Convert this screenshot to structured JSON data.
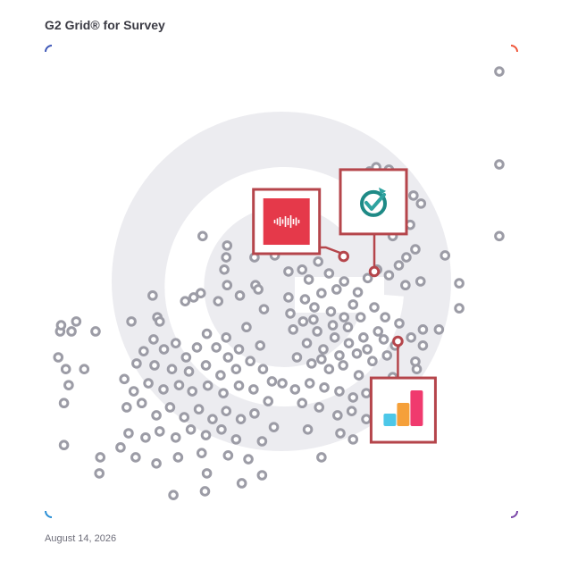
{
  "header": {
    "title": "G2 Grid® for Survey"
  },
  "footer": {
    "date": "August 14, 2026"
  },
  "colors": {
    "marker_fill": "#ffffff",
    "marker_stroke": "#9c9ca6",
    "highlight": "#b5454b",
    "watermark": "#e9e9ed"
  },
  "chart_data": {
    "type": "scatter",
    "title": "G2 Grid® for Survey",
    "xlabel": "",
    "ylabel": "",
    "xlim": [
      0,
      100
    ],
    "ylim": [
      0,
      100
    ],
    "quadrant_split": [
      50,
      50
    ],
    "grid": true,
    "logo_watermark": "g2-logo",
    "points": [
      {
        "x": 96.2,
        "y": 94.5
      },
      {
        "x": 96.2,
        "y": 74.8
      },
      {
        "x": 96.2,
        "y": 59.6
      },
      {
        "x": 84.7,
        "y": 55.5
      },
      {
        "x": 87.7,
        "y": 49.6
      },
      {
        "x": 87.7,
        "y": 44.3
      },
      {
        "x": 83.4,
        "y": 39.8
      },
      {
        "x": 80.0,
        "y": 39.8
      },
      {
        "x": 77.5,
        "y": 38.1
      },
      {
        "x": 80.0,
        "y": 36.4
      },
      {
        "x": 78.4,
        "y": 33.0
      },
      {
        "x": 72.8,
        "y": 73.7
      },
      {
        "x": 70.1,
        "y": 74.2
      },
      {
        "x": 68.7,
        "y": 73.3
      },
      {
        "x": 71.5,
        "y": 72.4
      },
      {
        "x": 73.6,
        "y": 68.9
      },
      {
        "x": 78.0,
        "y": 68.2
      },
      {
        "x": 79.6,
        "y": 66.5
      },
      {
        "x": 75.0,
        "y": 63.2
      },
      {
        "x": 77.3,
        "y": 62.0
      },
      {
        "x": 73.6,
        "y": 59.6
      },
      {
        "x": 78.4,
        "y": 56.8
      },
      {
        "x": 76.5,
        "y": 55.1
      },
      {
        "x": 74.9,
        "y": 53.4
      },
      {
        "x": 79.5,
        "y": 50.0
      },
      {
        "x": 76.3,
        "y": 49.2
      },
      {
        "x": 72.8,
        "y": 51.3
      },
      {
        "x": 70.3,
        "y": 52.5
      },
      {
        "x": 68.3,
        "y": 50.7
      },
      {
        "x": 66.2,
        "y": 47.7
      },
      {
        "x": 65.2,
        "y": 45.1
      },
      {
        "x": 63.3,
        "y": 50.0
      },
      {
        "x": 61.7,
        "y": 48.3
      },
      {
        "x": 60.1,
        "y": 51.7
      },
      {
        "x": 58.5,
        "y": 47.5
      },
      {
        "x": 57.8,
        "y": 54.2
      },
      {
        "x": 55.8,
        "y": 50.4
      },
      {
        "x": 55.0,
        "y": 46.2
      },
      {
        "x": 54.4,
        "y": 52.5
      },
      {
        "x": 51.5,
        "y": 46.6
      },
      {
        "x": 52.5,
        "y": 39.8
      },
      {
        "x": 56.8,
        "y": 41.9
      },
      {
        "x": 60.5,
        "y": 43.6
      },
      {
        "x": 63.3,
        "y": 42.4
      },
      {
        "x": 66.8,
        "y": 42.4
      },
      {
        "x": 69.7,
        "y": 44.5
      },
      {
        "x": 72.0,
        "y": 42.4
      },
      {
        "x": 75.0,
        "y": 41.1
      },
      {
        "x": 70.5,
        "y": 39.4
      },
      {
        "x": 67.4,
        "y": 38.1
      },
      {
        "x": 64.3,
        "y": 36.9
      },
      {
        "x": 61.3,
        "y": 38.1
      },
      {
        "x": 58.9,
        "y": 35.6
      },
      {
        "x": 55.4,
        "y": 36.9
      },
      {
        "x": 53.3,
        "y": 33.9
      },
      {
        "x": 56.4,
        "y": 32.6
      },
      {
        "x": 60.1,
        "y": 31.4
      },
      {
        "x": 63.1,
        "y": 32.2
      },
      {
        "x": 66.4,
        "y": 30.1
      },
      {
        "x": 69.3,
        "y": 33.1
      },
      {
        "x": 72.4,
        "y": 34.3
      },
      {
        "x": 73.6,
        "y": 29.7
      },
      {
        "x": 70.9,
        "y": 27.1
      },
      {
        "x": 68.0,
        "y": 26.3
      },
      {
        "x": 65.2,
        "y": 25.4
      },
      {
        "x": 62.3,
        "y": 26.7
      },
      {
        "x": 59.1,
        "y": 27.5
      },
      {
        "x": 56.0,
        "y": 28.4
      },
      {
        "x": 52.9,
        "y": 27.1
      },
      {
        "x": 50.2,
        "y": 28.4
      },
      {
        "x": 54.4,
        "y": 24.2
      },
      {
        "x": 58.0,
        "y": 23.3
      },
      {
        "x": 61.9,
        "y": 21.6
      },
      {
        "x": 64.9,
        "y": 22.5
      },
      {
        "x": 68.0,
        "y": 20.8
      },
      {
        "x": 71.3,
        "y": 23.7
      },
      {
        "x": 74.5,
        "y": 25.4
      },
      {
        "x": 76.6,
        "y": 27.9
      },
      {
        "x": 65.2,
        "y": 16.5
      },
      {
        "x": 58.5,
        "y": 12.7
      },
      {
        "x": 62.5,
        "y": 17.8
      },
      {
        "x": 55.6,
        "y": 18.6
      },
      {
        "x": 78.7,
        "y": 31.4
      },
      {
        "x": 66.0,
        "y": 34.7
      },
      {
        "x": 62.3,
        "y": 34.3
      },
      {
        "x": 58.5,
        "y": 33.5
      },
      {
        "x": 71.7,
        "y": 37.7
      },
      {
        "x": 74.1,
        "y": 36.4
      },
      {
        "x": 68.2,
        "y": 35.6
      },
      {
        "x": 64.1,
        "y": 40.3
      },
      {
        "x": 60.9,
        "y": 40.7
      },
      {
        "x": 57.6,
        "y": 39.4
      },
      {
        "x": 54.6,
        "y": 41.5
      },
      {
        "x": 51.9,
        "y": 43.2
      },
      {
        "x": 57.0,
        "y": 44.5
      },
      {
        "x": 44.5,
        "y": 49.2
      },
      {
        "x": 41.2,
        "y": 47.0
      },
      {
        "x": 38.5,
        "y": 49.2
      },
      {
        "x": 36.6,
        "y": 45.8
      },
      {
        "x": 32.9,
        "y": 47.5
      },
      {
        "x": 29.6,
        "y": 45.8
      },
      {
        "x": 23.7,
        "y": 42.4
      },
      {
        "x": 22.7,
        "y": 47.0
      },
      {
        "x": 18.2,
        "y": 41.5
      },
      {
        "x": 24.2,
        "y": 41.5
      },
      {
        "x": 46.3,
        "y": 44.1
      },
      {
        "x": 42.6,
        "y": 40.3
      },
      {
        "x": 45.5,
        "y": 36.4
      },
      {
        "x": 41.0,
        "y": 35.6
      },
      {
        "x": 38.3,
        "y": 38.1
      },
      {
        "x": 38.7,
        "y": 33.9
      },
      {
        "x": 36.2,
        "y": 36.0
      },
      {
        "x": 34.2,
        "y": 38.9
      },
      {
        "x": 32.1,
        "y": 36.0
      },
      {
        "x": 29.8,
        "y": 33.9
      },
      {
        "x": 27.6,
        "y": 36.9
      },
      {
        "x": 25.1,
        "y": 35.6
      },
      {
        "x": 22.9,
        "y": 37.7
      },
      {
        "x": 20.8,
        "y": 35.2
      },
      {
        "x": 19.3,
        "y": 32.6
      },
      {
        "x": 23.1,
        "y": 32.2
      },
      {
        "x": 26.8,
        "y": 31.4
      },
      {
        "x": 30.4,
        "y": 30.9
      },
      {
        "x": 34.0,
        "y": 32.2
      },
      {
        "x": 37.1,
        "y": 30.1
      },
      {
        "x": 40.4,
        "y": 31.4
      },
      {
        "x": 43.4,
        "y": 33.1
      },
      {
        "x": 46.1,
        "y": 31.4
      },
      {
        "x": 48.0,
        "y": 28.8
      },
      {
        "x": 44.1,
        "y": 27.1
      },
      {
        "x": 41.0,
        "y": 27.9
      },
      {
        "x": 37.7,
        "y": 26.3
      },
      {
        "x": 34.4,
        "y": 27.9
      },
      {
        "x": 31.1,
        "y": 26.7
      },
      {
        "x": 28.3,
        "y": 28.0
      },
      {
        "x": 25.0,
        "y": 27.1
      },
      {
        "x": 21.8,
        "y": 28.4
      },
      {
        "x": 18.7,
        "y": 26.7
      },
      {
        "x": 16.7,
        "y": 29.3
      },
      {
        "x": 17.2,
        "y": 23.3
      },
      {
        "x": 20.4,
        "y": 24.2
      },
      {
        "x": 23.5,
        "y": 21.6
      },
      {
        "x": 26.4,
        "y": 23.3
      },
      {
        "x": 29.4,
        "y": 21.2
      },
      {
        "x": 32.5,
        "y": 22.9
      },
      {
        "x": 35.4,
        "y": 20.8
      },
      {
        "x": 38.3,
        "y": 22.5
      },
      {
        "x": 41.4,
        "y": 20.8
      },
      {
        "x": 44.3,
        "y": 22.0
      },
      {
        "x": 47.2,
        "y": 24.6
      },
      {
        "x": 40.4,
        "y": 16.5
      },
      {
        "x": 37.3,
        "y": 18.6
      },
      {
        "x": 34.0,
        "y": 17.4
      },
      {
        "x": 30.8,
        "y": 18.6
      },
      {
        "x": 27.6,
        "y": 16.9
      },
      {
        "x": 24.2,
        "y": 18.2
      },
      {
        "x": 21.2,
        "y": 16.9
      },
      {
        "x": 17.6,
        "y": 17.8
      },
      {
        "x": 15.9,
        "y": 14.8
      },
      {
        "x": 19.1,
        "y": 12.7
      },
      {
        "x": 23.5,
        "y": 11.4
      },
      {
        "x": 28.1,
        "y": 12.7
      },
      {
        "x": 33.1,
        "y": 13.6
      },
      {
        "x": 38.7,
        "y": 13.1
      },
      {
        "x": 43.0,
        "y": 12.3
      },
      {
        "x": 45.9,
        "y": 16.1
      },
      {
        "x": 48.4,
        "y": 19.1
      },
      {
        "x": 45.9,
        "y": 8.9
      },
      {
        "x": 41.6,
        "y": 7.2
      },
      {
        "x": 11.4,
        "y": 9.3
      },
      {
        "x": 27.1,
        "y": 4.7
      },
      {
        "x": 34.2,
        "y": 9.3
      },
      {
        "x": 33.8,
        "y": 5.5
      },
      {
        "x": 3.9,
        "y": 24.2
      },
      {
        "x": 4.9,
        "y": 28.0
      },
      {
        "x": 4.3,
        "y": 31.4
      },
      {
        "x": 2.7,
        "y": 33.9
      },
      {
        "x": 3.1,
        "y": 39.4
      },
      {
        "x": 3.3,
        "y": 40.7
      },
      {
        "x": 5.5,
        "y": 39.4
      },
      {
        "x": 6.5,
        "y": 41.5
      },
      {
        "x": 10.6,
        "y": 39.4
      },
      {
        "x": 8.2,
        "y": 31.4
      },
      {
        "x": 3.9,
        "y": 15.3
      },
      {
        "x": 11.6,
        "y": 12.7
      },
      {
        "x": 33.3,
        "y": 59.6
      },
      {
        "x": 38.5,
        "y": 57.6
      },
      {
        "x": 38.3,
        "y": 55.1
      },
      {
        "x": 37.9,
        "y": 52.5
      },
      {
        "x": 44.3,
        "y": 55.1
      },
      {
        "x": 51.5,
        "y": 52.1
      },
      {
        "x": 48.6,
        "y": 55.5
      },
      {
        "x": 45.1,
        "y": 48.3
      },
      {
        "x": 31.4,
        "y": 46.6
      }
    ],
    "highlighted": [
      {
        "name": "",
        "x": 63.2,
        "y": 55.3,
        "logo": "red-waveform-logo",
        "callout": "upper-left"
      },
      {
        "name": "",
        "x": 69.7,
        "y": 52.1,
        "logo": "teal-checkmark-logo",
        "callout": "upper"
      },
      {
        "name": "",
        "x": 74.7,
        "y": 37.3,
        "logo": "bar-chart-logo",
        "callout": "lower"
      }
    ]
  }
}
